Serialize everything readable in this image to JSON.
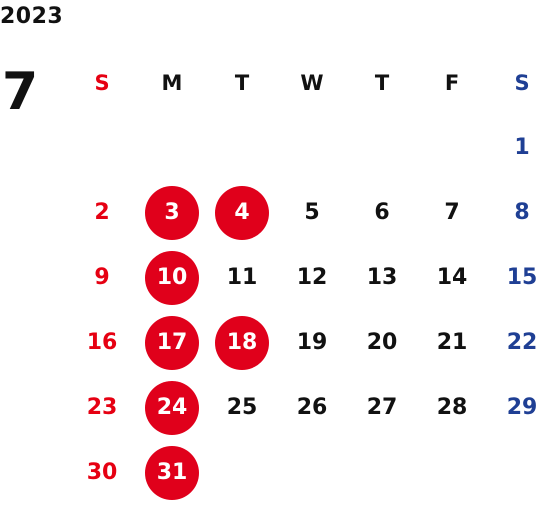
{
  "year": "2023",
  "month": "7",
  "weekdays": [
    "S",
    "M",
    "T",
    "W",
    "T",
    "F",
    "S"
  ],
  "highlight_color": "#e0001b",
  "sunday_color": "#e60012",
  "saturday_color": "#1f3f94",
  "weeks": [
    [
      null,
      null,
      null,
      null,
      null,
      null,
      1
    ],
    [
      2,
      3,
      4,
      5,
      6,
      7,
      8
    ],
    [
      9,
      10,
      11,
      12,
      13,
      14,
      15
    ],
    [
      16,
      17,
      18,
      19,
      20,
      21,
      22
    ],
    [
      23,
      24,
      25,
      26,
      27,
      28,
      29
    ],
    [
      30,
      31,
      null,
      null,
      null,
      null,
      null
    ]
  ],
  "highlighted_days": [
    3,
    4,
    10,
    17,
    18,
    24,
    31
  ]
}
